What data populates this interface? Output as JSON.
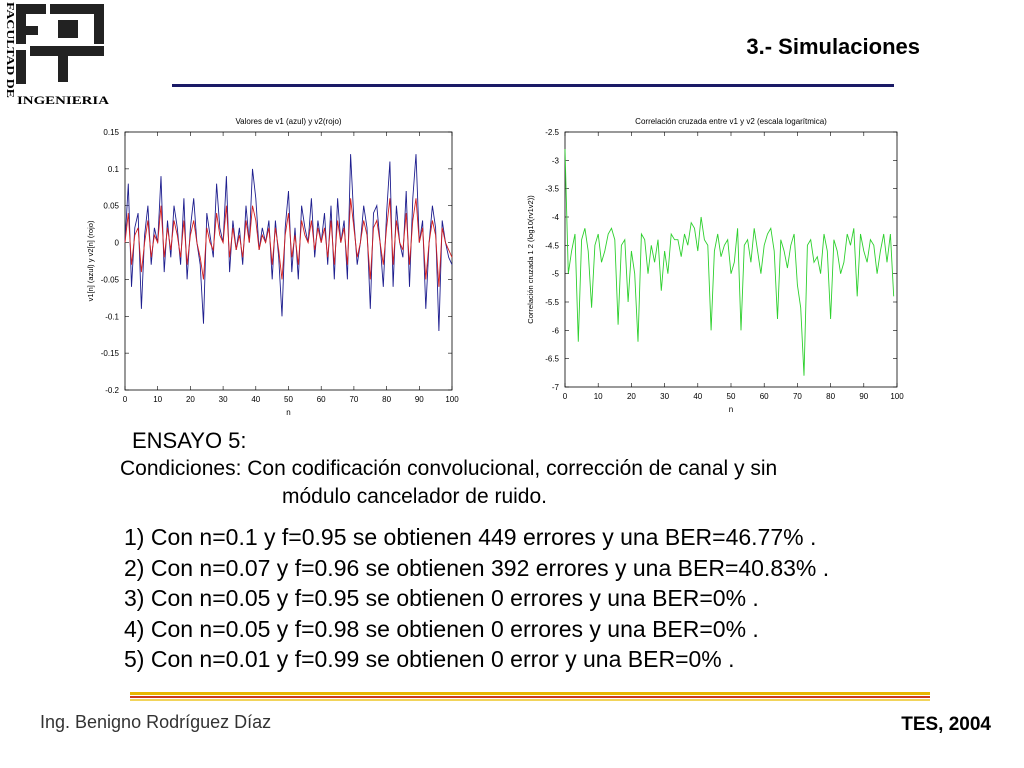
{
  "header": {
    "logo_text_vertical": "FACULTAD DE",
    "logo_text_horizontal": "INGENIERIA",
    "slide_title": "3.- Simulaciones",
    "accent_color": "#1a1a66"
  },
  "chart_data": [
    {
      "type": "line",
      "title": "Valores de v1 (azul) y v2(rojo)",
      "xlabel": "n",
      "ylabel": "v1[n] (azul) y v2[n] (rojo)",
      "xlim": [
        0,
        100
      ],
      "ylim": [
        -0.2,
        0.15
      ],
      "xticks": [
        0,
        10,
        20,
        30,
        40,
        50,
        60,
        70,
        80,
        90,
        100
      ],
      "yticks": [
        0.15,
        0.1,
        0.05,
        0,
        -0.05,
        -0.1,
        -0.15,
        -0.2
      ],
      "xtick_labels": [
        "0",
        "10",
        "20",
        "30",
        "40",
        "50",
        "60",
        "70",
        "80",
        "90",
        "100"
      ],
      "ytick_labels": [
        "0.15",
        "0.1",
        "0.05",
        "0",
        "-0.05",
        "-0.1",
        "-0.15",
        "-0.2"
      ],
      "grid": false,
      "series": [
        {
          "color": "#1f1f8f",
          "x": [
            0,
            1,
            2,
            3,
            4,
            5,
            6,
            7,
            8,
            9,
            10,
            11,
            12,
            13,
            14,
            15,
            16,
            17,
            18,
            19,
            20,
            21,
            22,
            23,
            24,
            25,
            26,
            27,
            28,
            29,
            30,
            31,
            32,
            33,
            34,
            35,
            36,
            37,
            38,
            39,
            40,
            41,
            42,
            43,
            44,
            45,
            46,
            47,
            48,
            49,
            50,
            51,
            52,
            53,
            54,
            55,
            56,
            57,
            58,
            59,
            60,
            61,
            62,
            63,
            64,
            65,
            66,
            67,
            68,
            69,
            70,
            71,
            72,
            73,
            74,
            75,
            76,
            77,
            78,
            79,
            80,
            81,
            82,
            83,
            84,
            85,
            86,
            87,
            88,
            89,
            90,
            91,
            92,
            93,
            94,
            95,
            96,
            97,
            98,
            99,
            100
          ],
          "y": [
            0.0,
            0.08,
            -0.06,
            0.02,
            0.04,
            -0.09,
            0.01,
            0.05,
            -0.03,
            0.02,
            0.0,
            0.09,
            -0.04,
            0.03,
            -0.02,
            0.05,
            0.02,
            -0.03,
            0.06,
            -0.05,
            0.02,
            0.06,
            0.0,
            -0.03,
            -0.11,
            0.04,
            0.01,
            -0.02,
            0.08,
            0.02,
            0.0,
            0.09,
            -0.04,
            0.03,
            -0.01,
            0.02,
            -0.03,
            0.05,
            0.0,
            0.1,
            0.06,
            -0.01,
            0.02,
            0.0,
            0.03,
            -0.05,
            0.03,
            -0.02,
            -0.1,
            0.02,
            0.07,
            -0.04,
            0.02,
            -0.05,
            0.05,
            0.02,
            0.0,
            0.06,
            -0.02,
            0.03,
            0.0,
            0.04,
            -0.03,
            0.05,
            -0.05,
            0.06,
            0.0,
            0.03,
            -0.05,
            0.12,
            0.03,
            -0.03,
            0.0,
            0.05,
            0.02,
            -0.09,
            0.04,
            0.05,
            0.0,
            -0.06,
            0.04,
            0.11,
            -0.06,
            0.05,
            0.0,
            -0.02,
            0.07,
            -0.06,
            0.06,
            0.12,
            0.0,
            0.03,
            -0.09,
            0.0,
            0.05,
            0.02,
            -0.12,
            0.03,
            0.0,
            -0.02,
            -0.03
          ]
        },
        {
          "color": "#d42020",
          "x": [
            0,
            1,
            2,
            3,
            4,
            5,
            6,
            7,
            8,
            9,
            10,
            11,
            12,
            13,
            14,
            15,
            16,
            17,
            18,
            19,
            20,
            21,
            22,
            23,
            24,
            25,
            26,
            27,
            28,
            29,
            30,
            31,
            32,
            33,
            34,
            35,
            36,
            37,
            38,
            39,
            40,
            41,
            42,
            43,
            44,
            45,
            46,
            47,
            48,
            49,
            50,
            51,
            52,
            53,
            54,
            55,
            56,
            57,
            58,
            59,
            60,
            61,
            62,
            63,
            64,
            65,
            66,
            67,
            68,
            69,
            70,
            71,
            72,
            73,
            74,
            75,
            76,
            77,
            78,
            79,
            80,
            81,
            82,
            83,
            84,
            85,
            86,
            87,
            88,
            89,
            90,
            91,
            92,
            93,
            94,
            95,
            96,
            97,
            98,
            99,
            100
          ],
          "y": [
            0.0,
            0.04,
            -0.03,
            0.01,
            0.02,
            -0.04,
            0.0,
            0.03,
            -0.02,
            0.01,
            0.0,
            0.05,
            -0.02,
            0.02,
            -0.01,
            0.03,
            0.01,
            -0.02,
            0.03,
            -0.03,
            0.01,
            0.03,
            0.0,
            -0.02,
            -0.05,
            0.02,
            0.0,
            -0.01,
            0.04,
            0.01,
            0.0,
            0.05,
            -0.02,
            0.02,
            -0.01,
            0.01,
            -0.02,
            0.03,
            0.0,
            0.05,
            0.03,
            -0.01,
            0.01,
            0.0,
            0.02,
            -0.03,
            0.02,
            -0.01,
            -0.05,
            0.01,
            0.04,
            -0.02,
            0.01,
            -0.03,
            0.03,
            0.01,
            0.0,
            0.03,
            -0.01,
            0.02,
            0.0,
            0.02,
            -0.02,
            0.03,
            -0.03,
            0.03,
            0.0,
            0.02,
            -0.03,
            0.06,
            0.02,
            -0.02,
            0.0,
            0.03,
            0.01,
            -0.05,
            0.02,
            0.03,
            0.0,
            -0.03,
            0.02,
            0.06,
            -0.03,
            0.03,
            0.0,
            -0.01,
            0.04,
            -0.03,
            0.03,
            0.06,
            0.0,
            0.02,
            -0.05,
            0.0,
            0.03,
            0.01,
            -0.06,
            0.02,
            0.0,
            -0.01,
            -0.02
          ]
        }
      ]
    },
    {
      "type": "line",
      "title": "Correlación cruzada entre v1 y v2 (escala logarítmica)",
      "xlabel": "n",
      "ylabel": "Correlación cruzada 1 2 (log10(rv1v2))",
      "xlim": [
        0,
        100
      ],
      "ylim": [
        -7,
        -2.5
      ],
      "xticks": [
        0,
        10,
        20,
        30,
        40,
        50,
        60,
        70,
        80,
        90,
        100
      ],
      "yticks": [
        -2.5,
        -3,
        -3.5,
        -4,
        -4.5,
        -5,
        -5.5,
        -6,
        -6.5,
        -7
      ],
      "xtick_labels": [
        "0",
        "10",
        "20",
        "30",
        "40",
        "50",
        "60",
        "70",
        "80",
        "90",
        "100"
      ],
      "ytick_labels": [
        "-2.5",
        "-3",
        "-3.5",
        "-4",
        "-4.5",
        "-5",
        "-5.5",
        "-6",
        "-6.5",
        "-7"
      ],
      "grid": false,
      "series": [
        {
          "color": "#2ed02e",
          "x": [
            0,
            1,
            2,
            3,
            4,
            5,
            6,
            7,
            8,
            9,
            10,
            11,
            12,
            13,
            14,
            15,
            16,
            17,
            18,
            19,
            20,
            21,
            22,
            23,
            24,
            25,
            26,
            27,
            28,
            29,
            30,
            31,
            32,
            33,
            34,
            35,
            36,
            37,
            38,
            39,
            40,
            41,
            42,
            43,
            44,
            45,
            46,
            47,
            48,
            49,
            50,
            51,
            52,
            53,
            54,
            55,
            56,
            57,
            58,
            59,
            60,
            61,
            62,
            63,
            64,
            65,
            66,
            67,
            68,
            69,
            70,
            71,
            72,
            73,
            74,
            75,
            76,
            77,
            78,
            79,
            80,
            81,
            82,
            83,
            84,
            85,
            86,
            87,
            88,
            89,
            90,
            91,
            92,
            93,
            94,
            95,
            96,
            97,
            98,
            99
          ],
          "y": [
            -2.8,
            -5.0,
            -4.6,
            -4.3,
            -6.2,
            -4.4,
            -4.2,
            -4.6,
            -5.6,
            -4.5,
            -4.3,
            -4.8,
            -4.6,
            -4.3,
            -4.2,
            -4.4,
            -5.9,
            -4.5,
            -4.4,
            -5.5,
            -4.6,
            -5.0,
            -6.2,
            -4.3,
            -4.4,
            -5.0,
            -4.5,
            -4.8,
            -4.4,
            -5.3,
            -4.6,
            -5.0,
            -4.3,
            -4.4,
            -4.4,
            -4.7,
            -4.3,
            -4.5,
            -4.1,
            -4.2,
            -4.6,
            -4.0,
            -4.4,
            -4.5,
            -6.0,
            -4.6,
            -4.3,
            -4.7,
            -4.5,
            -4.4,
            -5.0,
            -4.8,
            -4.2,
            -6.0,
            -4.5,
            -4.4,
            -4.8,
            -4.2,
            -4.6,
            -5.0,
            -4.5,
            -4.3,
            -4.2,
            -4.6,
            -5.8,
            -4.4,
            -4.6,
            -4.9,
            -4.5,
            -4.3,
            -5.2,
            -5.6,
            -6.8,
            -4.5,
            -4.4,
            -4.8,
            -4.7,
            -5.0,
            -4.3,
            -4.6,
            -5.8,
            -4.4,
            -4.6,
            -5.0,
            -4.8,
            -4.3,
            -4.5,
            -4.2,
            -5.4,
            -4.3,
            -4.6,
            -4.8,
            -4.4,
            -4.5,
            -5.0,
            -4.6,
            -4.3,
            -4.8,
            -4.3,
            -5.4
          ]
        }
      ]
    }
  ],
  "body": {
    "ensayo": "ENSAYO 5:",
    "conditions_line1": "Condiciones: Con codificación convolucional, corrección de canal y sin",
    "conditions_line2": "módulo cancelador de ruido.",
    "results": [
      "1) Con n=0.1 y f=0.95 se obtienen 449 errores y una BER=46.77% .",
      "2) Con n=0.07 y f=0.96 se obtienen 392 errores y una BER=40.83% .",
      "3) Con n=0.05 y f=0.95 se obtienen 0 errores y una BER=0% .",
      "4) Con n=0.05 y f=0.98 se obtienen 0 errores y una BER=0% .",
      "5) Con n=0.01 y f=0.99 se obtienen 0 error y una BER=0% ."
    ]
  },
  "footer": {
    "author": "Ing. Benigno Rodríguez Díaz",
    "course": "TES, 2004"
  }
}
